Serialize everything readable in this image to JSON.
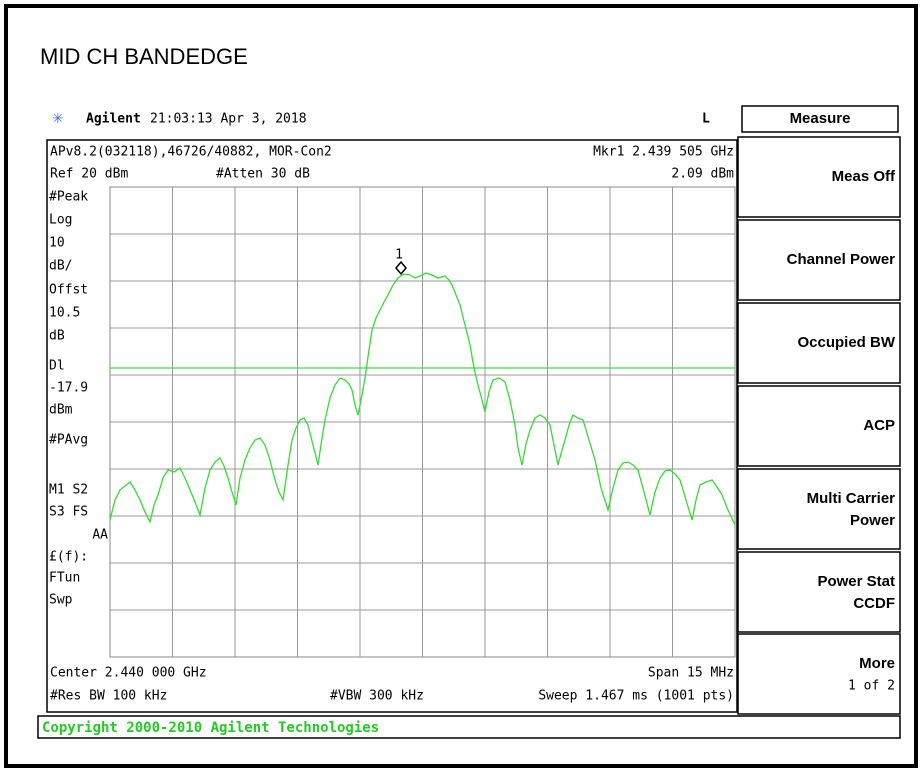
{
  "header": {
    "title": "MID CH BANDEDGE"
  },
  "status": {
    "brand": "Agilent",
    "datetime": "21:03:13  Apr 3, 2018",
    "mode": "L"
  },
  "screen": {
    "line1": "APv8.2(032118),46726/40882, MOR-Con2",
    "marker_label": "Mkr1  2.439 505 GHz",
    "ref": "Ref 20 dBm",
    "atten": "#Atten 30 dB",
    "marker_value": "2.09 dBm",
    "marker_id": "1",
    "annotations": [
      "#Peak",
      "Log",
      "10",
      "dB/",
      "Offst",
      "10.5",
      "dB",
      "Dl",
      "-17.9",
      "dBm",
      "#PAvg",
      "M1  S2",
      "S3  FS",
      "AA",
      "£(f):",
      "FTun",
      "Swp"
    ],
    "center": "Center 2.440 000 GHz",
    "span": "Span 15 MHz",
    "rbw": "#Res BW 100 kHz",
    "vbw": "#VBW 300 kHz",
    "sweep": "Sweep 1.467 ms (1001 pts)"
  },
  "menu": {
    "title": "Measure",
    "softkeys": [
      [
        "Meas Off"
      ],
      [
        "Channel Power"
      ],
      [
        "Occupied BW"
      ],
      [
        "ACP"
      ],
      [
        "Multi Carrier",
        "Power"
      ],
      [
        "Power Stat",
        "CCDF"
      ],
      [
        "More",
        "1 of 2"
      ]
    ]
  },
  "footer": {
    "copyright": "Copyright 2000-2010 Agilent Technologies"
  }
}
